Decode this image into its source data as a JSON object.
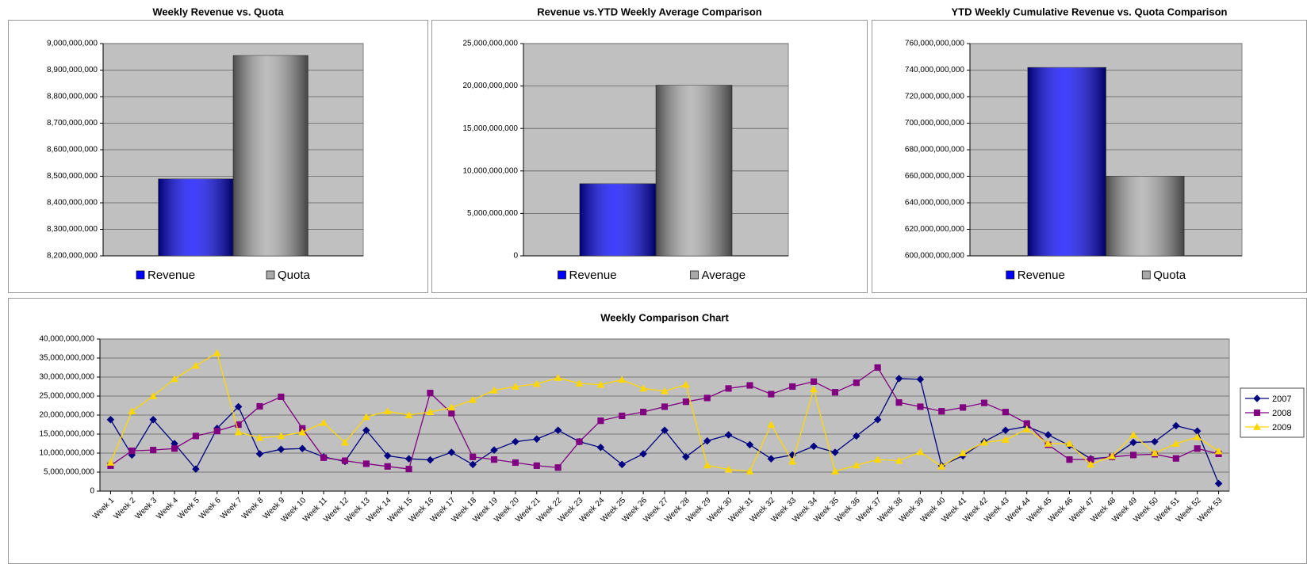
{
  "chart_data": [
    {
      "type": "bar",
      "title": "Weekly Revenue vs. Quota",
      "categories": [
        "Revenue",
        "Quota"
      ],
      "values": [
        8490000000,
        8955000000
      ],
      "colors": [
        "#0000ff",
        "#a8a8a8"
      ],
      "ylim": [
        8200000000,
        9000000000
      ],
      "yticks": [
        {
          "value": 8200000000,
          "label": "8,200,000,000"
        },
        {
          "value": 8300000000,
          "label": "8,300,000,000"
        },
        {
          "value": 8400000000,
          "label": "8,400,000,000"
        },
        {
          "value": 8500000000,
          "label": "8,500,000,000"
        },
        {
          "value": 8600000000,
          "label": "8,600,000,000"
        },
        {
          "value": 8700000000,
          "label": "8,700,000,000"
        },
        {
          "value": 8800000000,
          "label": "8,800,000,000"
        },
        {
          "value": 8900000000,
          "label": "8,900,000,000"
        },
        {
          "value": 9000000000,
          "label": "9,000,000,000"
        }
      ],
      "grid": true,
      "legend": "bottom"
    },
    {
      "type": "bar",
      "title": "Revenue vs.YTD Weekly Average Comparison",
      "categories": [
        "Revenue",
        "Average"
      ],
      "values": [
        8500000000,
        20100000000
      ],
      "colors": [
        "#0000ff",
        "#a8a8a8"
      ],
      "ylim": [
        0,
        25000000000
      ],
      "yticks": [
        0,
        {
          "value": 5000000000,
          "label": "5,000,000,000"
        },
        {
          "value": 10000000000,
          "label": "10,000,000,000"
        },
        {
          "value": 15000000000,
          "label": "15,000,000,000"
        },
        {
          "value": 20000000000,
          "label": "20,000,000,000"
        },
        {
          "value": 25000000000,
          "label": "25,000,000,000"
        }
      ],
      "grid": true,
      "legend": "bottom"
    },
    {
      "type": "bar",
      "title": "YTD Weekly Cumulative Revenue vs. Quota Comparison",
      "categories": [
        "Revenue",
        "Quota"
      ],
      "values": [
        742000000000,
        660000000000
      ],
      "colors": [
        "#0000ff",
        "#a8a8a8"
      ],
      "ylim": [
        600000000000,
        760000000000
      ],
      "yticks": [
        {
          "value": 600000000000,
          "label": "600,000,000,000"
        },
        {
          "value": 620000000000,
          "label": "620,000,000,000"
        },
        {
          "value": 640000000000,
          "label": "640,000,000,000"
        },
        {
          "value": 660000000000,
          "label": "660,000,000,000"
        },
        {
          "value": 680000000000,
          "label": "680,000,000,000"
        },
        {
          "value": 700000000000,
          "label": "700,000,000,000"
        },
        {
          "value": 720000000000,
          "label": "720,000,000,000"
        },
        {
          "value": 740000000000,
          "label": "740,000,000,000"
        },
        {
          "value": 760000000000,
          "label": "760,000,000,000"
        }
      ],
      "grid": true,
      "legend": "bottom"
    },
    {
      "type": "line",
      "title": "Weekly Comparison Chart",
      "categories": [
        "Week 1",
        "Week 2",
        "Week 3",
        "Week 4",
        "Week 5",
        "Week 6",
        "Week 7",
        "Week 8",
        "Week 9",
        "Week 10",
        "Week 11",
        "Week 12",
        "Week 13",
        "Week 14",
        "Week 15",
        "Week 16",
        "Week 17",
        "Week 18",
        "Week 19",
        "Week 20",
        "Week 21",
        "Week 22",
        "Week 23",
        "Week 24",
        "Week 25",
        "Week 26",
        "Week 27",
        "Week 28",
        "Week 29",
        "Week 30",
        "Week 31",
        "Week 32",
        "Week 33",
        "Week 34",
        "Week 35",
        "Week 36",
        "Week 37",
        "Week 38",
        "Week 39",
        "Week 40",
        "Week 41",
        "Week 42",
        "Week 43",
        "Week 44",
        "Week 45",
        "Week 46",
        "Week 47",
        "Week 48",
        "Week 49",
        "Week 50",
        "Week 51",
        "Week 52",
        "Week 53"
      ],
      "series": [
        {
          "name": "2007",
          "color": "#000080",
          "marker": "diamond",
          "values": [
            18800000000.0,
            9500000000.0,
            18800000000.0,
            12500000000.0,
            5800000000.0,
            16500000000.0,
            22200000000.0,
            9800000000.0,
            11000000000.0,
            11200000000.0,
            9000000000.0,
            7800000000.0,
            16000000000.0,
            9300000000.0,
            8500000000.0,
            8200000000.0,
            10200000000.0,
            7000000000.0,
            10800000000.0,
            13000000000.0,
            13700000000.0,
            16000000000.0,
            13000000000.0,
            11500000000.0,
            7000000000.0,
            9800000000.0,
            16000000000.0,
            9000000000.0,
            13200000000.0,
            14800000000.0,
            12200000000.0,
            8500000000.0,
            9500000000.0,
            11800000000.0,
            10200000000.0,
            14500000000.0,
            18800000000.0,
            29600000000.0,
            29400000000.0,
            6700000000.0,
            9300000000.0,
            13000000000.0,
            16000000000.0,
            17000000000.0,
            14800000000.0,
            12000000000.0,
            8500000000.0,
            9000000000.0,
            12800000000.0,
            13000000000.0,
            17200000000.0,
            15800000000.0,
            2000000000.0
          ]
        },
        {
          "name": "2008",
          "color": "#800080",
          "marker": "square",
          "values": [
            6700000000.0,
            10600000000.0,
            10800000000.0,
            11200000000.0,
            14500000000.0,
            15800000000.0,
            17500000000.0,
            22300000000.0,
            24800000000.0,
            16500000000.0,
            8800000000.0,
            8000000000.0,
            7200000000.0,
            6500000000.0,
            5800000000.0,
            25800000000.0,
            20500000000.0,
            9000000000.0,
            8300000000.0,
            7500000000.0,
            6700000000.0,
            6200000000.0,
            13000000000.0,
            18500000000.0,
            19800000000.0,
            20800000000.0,
            22200000000.0,
            23500000000.0,
            24500000000.0,
            27000000000.0,
            27800000000.0,
            25500000000.0,
            27500000000.0,
            28800000000.0,
            26000000000.0,
            28500000000.0,
            32500000000.0,
            23300000000.0,
            22200000000.0,
            21000000000.0,
            22000000000.0,
            23200000000.0,
            20800000000.0,
            17800000000.0,
            12200000000.0,
            8300000000.0,
            8300000000.0,
            9000000000.0,
            9500000000.0,
            9700000000.0,
            8600000000.0,
            11200000000.0,
            9800000000.0
          ]
        },
        {
          "name": "2009",
          "color": "#ffd700",
          "marker": "triangle",
          "values": [
            7500000000.0,
            21000000000.0,
            25000000000.0,
            29500000000.0,
            33000000000.0,
            36300000000.0,
            15500000000.0,
            14000000000.0,
            14500000000.0,
            15500000000.0,
            18000000000.0,
            12800000000.0,
            19500000000.0,
            21000000000.0,
            20000000000.0,
            20800000000.0,
            22000000000.0,
            24000000000.0,
            26500000000.0,
            27500000000.0,
            28200000000.0,
            29800000000.0,
            28300000000.0,
            28000000000.0,
            29300000000.0,
            27000000000.0,
            26300000000.0,
            28000000000.0,
            6800000000.0,
            5700000000.0,
            5200000000.0,
            17500000000.0,
            7800000000.0,
            26800000000.0,
            5200000000.0,
            6800000000.0,
            8300000000.0,
            8000000000.0,
            10300000000.0,
            6500000000.0,
            10000000000.0,
            12800000000.0,
            13500000000.0,
            16300000000.0,
            12500000000.0,
            12500000000.0,
            7000000000.0,
            9200000000.0,
            14800000000.0,
            10000000000.0,
            12500000000.0,
            14200000000.0,
            10500000000.0
          ]
        }
      ],
      "ylim": [
        0,
        40000000000
      ],
      "yticks": [
        0,
        {
          "value": 5000000000,
          "label": "5,000,000,000"
        },
        {
          "value": 10000000000,
          "label": "10,000,000,000"
        },
        {
          "value": 15000000000,
          "label": "15,000,000,000"
        },
        {
          "value": 20000000000,
          "label": "20,000,000,000"
        },
        {
          "value": 25000000000,
          "label": "25,000,000,000"
        },
        {
          "value": 30000000000,
          "label": "30,000,000,000"
        },
        {
          "value": 35000000000,
          "label": "35,000,000,000"
        },
        {
          "value": 40000000000,
          "label": "40,000,000,000"
        }
      ],
      "grid": true,
      "legend": "right"
    }
  ]
}
